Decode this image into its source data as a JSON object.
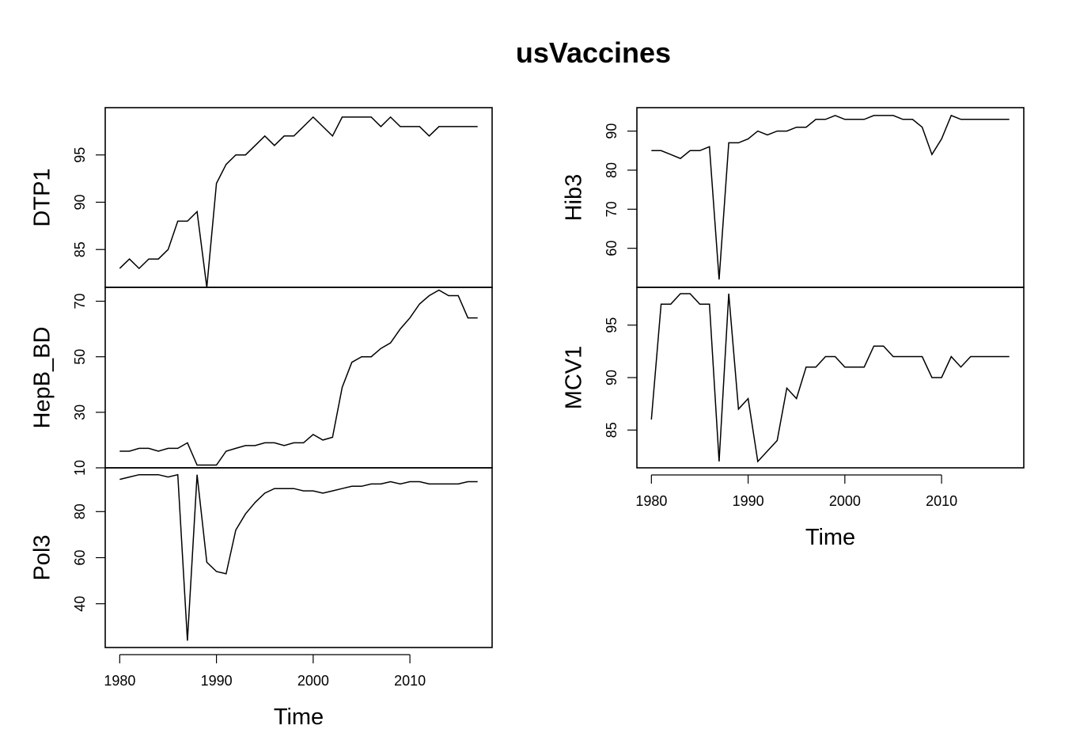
{
  "title": "usVaccines",
  "chart_data": [
    {
      "type": "line",
      "ylabel": "DTP1",
      "xlabel": "",
      "ylim": [
        81,
        100
      ],
      "yticks": [
        85,
        90,
        95
      ],
      "x": [
        1980,
        1981,
        1982,
        1983,
        1984,
        1985,
        1986,
        1987,
        1988,
        1989,
        1990,
        1991,
        1992,
        1993,
        1994,
        1995,
        1996,
        1997,
        1998,
        1999,
        2000,
        2001,
        2002,
        2003,
        2004,
        2005,
        2006,
        2007,
        2008,
        2009,
        2010,
        2011,
        2012,
        2013,
        2014,
        2015,
        2016,
        2017
      ],
      "values": [
        83,
        84,
        83,
        84,
        84,
        85,
        88,
        88,
        89,
        81,
        92,
        94,
        95,
        95,
        96,
        97,
        96,
        97,
        97,
        98,
        99,
        98,
        97,
        99,
        99,
        99,
        99,
        98,
        99,
        98,
        98,
        98,
        97,
        98,
        98,
        98,
        98,
        98
      ]
    },
    {
      "type": "line",
      "ylabel": "HepB_BD",
      "xlabel": "",
      "ylim": [
        10,
        75
      ],
      "yticks": [
        10,
        30,
        50,
        70
      ],
      "x": [
        1980,
        1981,
        1982,
        1983,
        1984,
        1985,
        1986,
        1987,
        1988,
        1989,
        1990,
        1991,
        1992,
        1993,
        1994,
        1995,
        1996,
        1997,
        1998,
        1999,
        2000,
        2001,
        2002,
        2003,
        2004,
        2005,
        2006,
        2007,
        2008,
        2009,
        2010,
        2011,
        2012,
        2013,
        2014,
        2015,
        2016,
        2017
      ],
      "values": [
        16,
        16,
        17,
        17,
        16,
        17,
        17,
        19,
        11,
        11,
        11,
        16,
        17,
        18,
        18,
        19,
        19,
        18,
        19,
        19,
        22,
        20,
        21,
        39,
        48,
        50,
        50,
        53,
        55,
        60,
        64,
        69,
        72,
        74,
        72,
        72,
        64,
        64
      ]
    },
    {
      "type": "line",
      "ylabel": "Pol3",
      "xlabel": "Time",
      "ylim": [
        21,
        99
      ],
      "yticks": [
        40,
        60,
        80
      ],
      "xticks": [
        1980,
        1990,
        2000,
        2010
      ],
      "x": [
        1980,
        1981,
        1982,
        1983,
        1984,
        1985,
        1986,
        1987,
        1988,
        1989,
        1990,
        1991,
        1992,
        1993,
        1994,
        1995,
        1996,
        1997,
        1998,
        1999,
        2000,
        2001,
        2002,
        2003,
        2004,
        2005,
        2006,
        2007,
        2008,
        2009,
        2010,
        2011,
        2012,
        2013,
        2014,
        2015,
        2016,
        2017
      ],
      "values": [
        94,
        95,
        96,
        96,
        96,
        95,
        96,
        24,
        96,
        58,
        54,
        53,
        72,
        79,
        84,
        88,
        90,
        90,
        90,
        89,
        89,
        88,
        89,
        90,
        91,
        91,
        92,
        92,
        93,
        92,
        93,
        93,
        92,
        92,
        92,
        92,
        93,
        93
      ]
    },
    {
      "type": "line",
      "ylabel": "Hib3",
      "xlabel": "",
      "ylim": [
        50,
        96
      ],
      "yticks": [
        60,
        70,
        80,
        90
      ],
      "x": [
        1980,
        1981,
        1982,
        1983,
        1984,
        1985,
        1986,
        1987,
        1988,
        1989,
        1990,
        1991,
        1992,
        1993,
        1994,
        1995,
        1996,
        1997,
        1998,
        1999,
        2000,
        2001,
        2002,
        2003,
        2004,
        2005,
        2006,
        2007,
        2008,
        2009,
        2010,
        2011,
        2012,
        2013,
        2014,
        2015,
        2016,
        2017
      ],
      "values": [
        85,
        85,
        84,
        83,
        85,
        85,
        86,
        52,
        87,
        87,
        88,
        90,
        89,
        90,
        90,
        91,
        91,
        93,
        93,
        94,
        93,
        93,
        93,
        94,
        94,
        94,
        93,
        93,
        91,
        84,
        88,
        94,
        93,
        93,
        93,
        93,
        93,
        93
      ]
    },
    {
      "type": "line",
      "ylabel": "MCV1",
      "xlabel": "Time",
      "ylim": [
        81.4,
        98.6
      ],
      "yticks": [
        85,
        90,
        95
      ],
      "xticks": [
        1980,
        1990,
        2000,
        2010
      ],
      "x": [
        1980,
        1981,
        1982,
        1983,
        1984,
        1985,
        1986,
        1987,
        1988,
        1989,
        1990,
        1991,
        1992,
        1993,
        1994,
        1995,
        1996,
        1997,
        1998,
        1999,
        2000,
        2001,
        2002,
        2003,
        2004,
        2005,
        2006,
        2007,
        2008,
        2009,
        2010,
        2011,
        2012,
        2013,
        2014,
        2015,
        2016,
        2017
      ],
      "values": [
        86,
        97,
        97,
        98,
        98,
        97,
        97,
        82,
        98,
        87,
        88,
        82,
        83,
        84,
        89,
        88,
        91,
        91,
        92,
        92,
        91,
        91,
        91,
        93,
        93,
        92,
        92,
        92,
        92,
        90,
        90,
        92,
        91,
        92,
        92,
        92,
        92,
        92
      ]
    }
  ]
}
